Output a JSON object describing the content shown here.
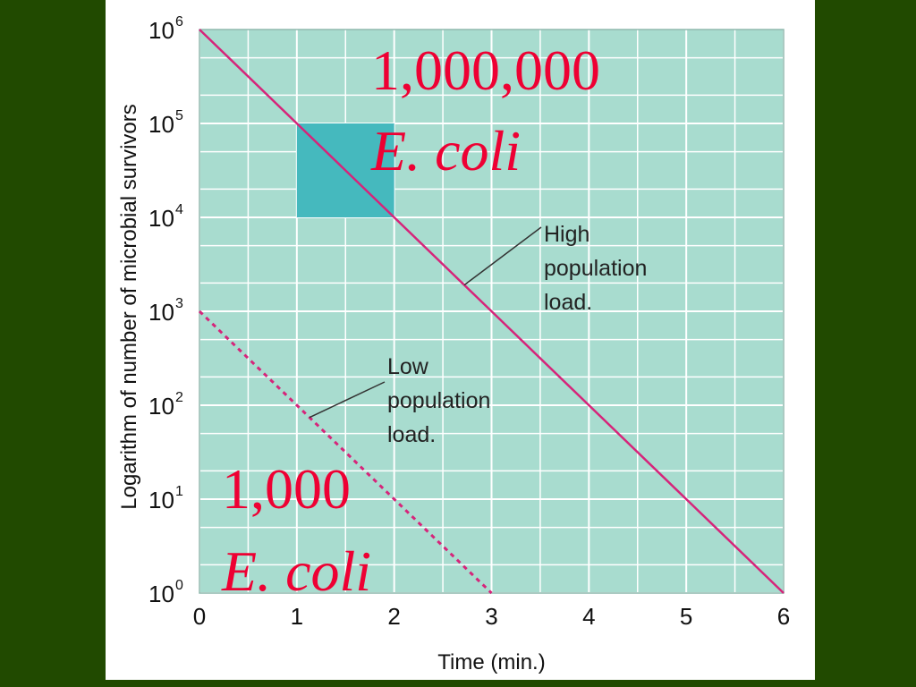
{
  "chart_data": {
    "type": "line",
    "xlabel": "Time (min.)",
    "ylabel": "Logarithm of number of microbial survivors",
    "xlim": [
      0,
      6
    ],
    "ylim_log10": [
      0,
      6
    ],
    "x_ticks": [
      "0",
      "1",
      "2",
      "3",
      "4",
      "5",
      "6"
    ],
    "y_ticks": [
      {
        "base": "10",
        "exp": "6",
        "value": 1000000
      },
      {
        "base": "10",
        "exp": "5",
        "value": 100000
      },
      {
        "base": "10",
        "exp": "4",
        "value": 10000
      },
      {
        "base": "10",
        "exp": "3",
        "value": 1000
      },
      {
        "base": "10",
        "exp": "2",
        "value": 100
      },
      {
        "base": "10",
        "exp": "1",
        "value": 10
      },
      {
        "base": "10",
        "exp": "0",
        "value": 1
      }
    ],
    "grid": true,
    "series": [
      {
        "name": "High population load.",
        "style": "solid",
        "color": "#d6247a",
        "x": [
          0,
          1,
          2,
          3,
          4,
          5,
          6
        ],
        "y": [
          1000000,
          100000,
          10000,
          1000,
          100,
          10,
          1
        ],
        "label_lines": [
          "High",
          "population",
          "load."
        ]
      },
      {
        "name": "Low population load.",
        "style": "dashed",
        "color": "#d6247a",
        "x": [
          0,
          1,
          2,
          3
        ],
        "y": [
          1000,
          100,
          10,
          1
        ],
        "label_lines": [
          "Low",
          "population",
          "load."
        ]
      }
    ],
    "highlight_box": {
      "x": [
        1,
        2
      ],
      "y": [
        10000,
        100000
      ],
      "color": "#45b9be"
    },
    "annotations": [
      {
        "lines": [
          "1,000,000",
          "E. coli"
        ],
        "color": "#ee0033"
      },
      {
        "lines": [
          "1,000",
          "E. coli"
        ],
        "color": "#ee0033"
      }
    ],
    "colors": {
      "plot_background": "#a8dccf",
      "grid": "#ffffff",
      "slide_background": "#214a00",
      "panel": "#ffffff"
    }
  }
}
